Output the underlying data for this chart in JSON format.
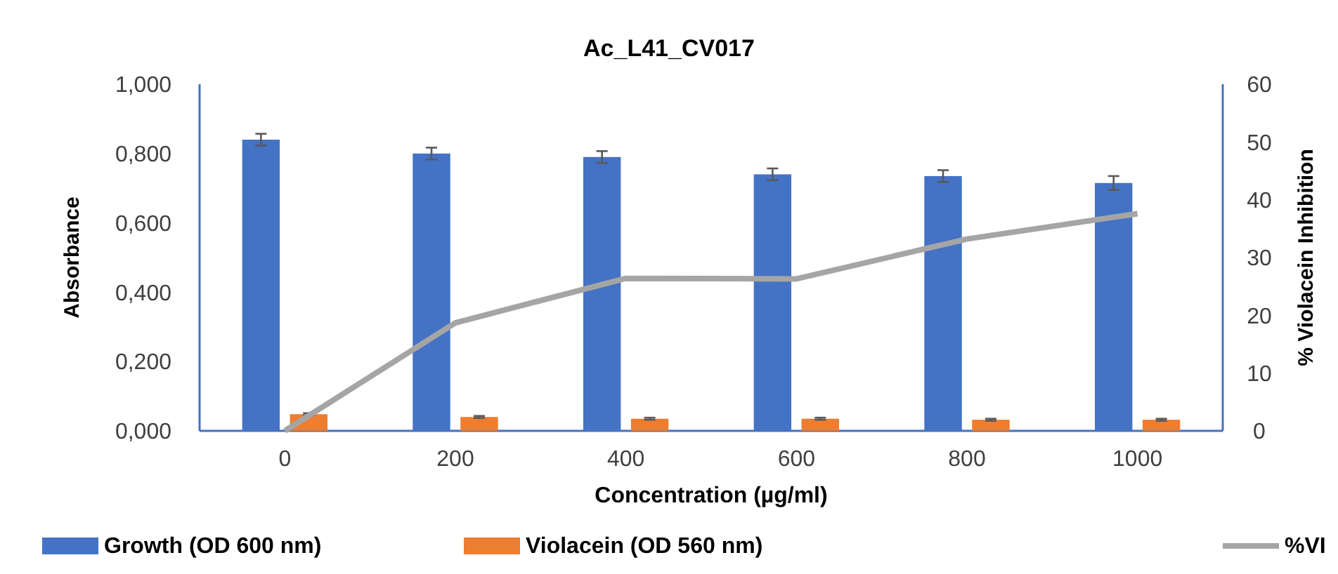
{
  "chart_data": {
    "type": "bar",
    "title": "Ac_L41_CV017",
    "xlabel": "Concentration (µg/ml)",
    "ylabel": "Absorbance",
    "y2label": "% Violacein Inhibition",
    "categories": [
      "0",
      "200",
      "400",
      "600",
      "800",
      "1000"
    ],
    "series": [
      {
        "name": "Growth (OD 600 nm)",
        "color": "#4472c4",
        "values": [
          0.84,
          0.8,
          0.79,
          0.74,
          0.735,
          0.715
        ],
        "errors": [
          0.017,
          0.017,
          0.017,
          0.017,
          0.017,
          0.02
        ]
      },
      {
        "name": "Violacein (OD 560 nm)",
        "color": "#ed7d31",
        "values": [
          0.048,
          0.04,
          0.035,
          0.035,
          0.032,
          0.032
        ],
        "errors": [
          0.003,
          0.003,
          0.003,
          0.003,
          0.003,
          0.003
        ]
      },
      {
        "name": "%VI",
        "type": "line",
        "axis": "y2",
        "color": "#a5a5a5",
        "values": [
          0,
          18.7,
          26.4,
          26.3,
          33.2,
          37.6
        ]
      }
    ],
    "ylim": [
      0,
      1
    ],
    "yticks": [
      {
        "value": 0,
        "label": "0,000"
      },
      {
        "value": 0.2,
        "label": "0,200"
      },
      {
        "value": 0.4,
        "label": "0,400"
      },
      {
        "value": 0.6,
        "label": "0,600"
      },
      {
        "value": 0.8,
        "label": "0,800"
      },
      {
        "value": 1,
        "label": "1,000"
      }
    ],
    "y2lim": [
      0,
      60
    ],
    "y2ticks": [
      0,
      10,
      20,
      30,
      40,
      50,
      60
    ],
    "legend": "bottom",
    "grid": false,
    "marker": "none"
  }
}
